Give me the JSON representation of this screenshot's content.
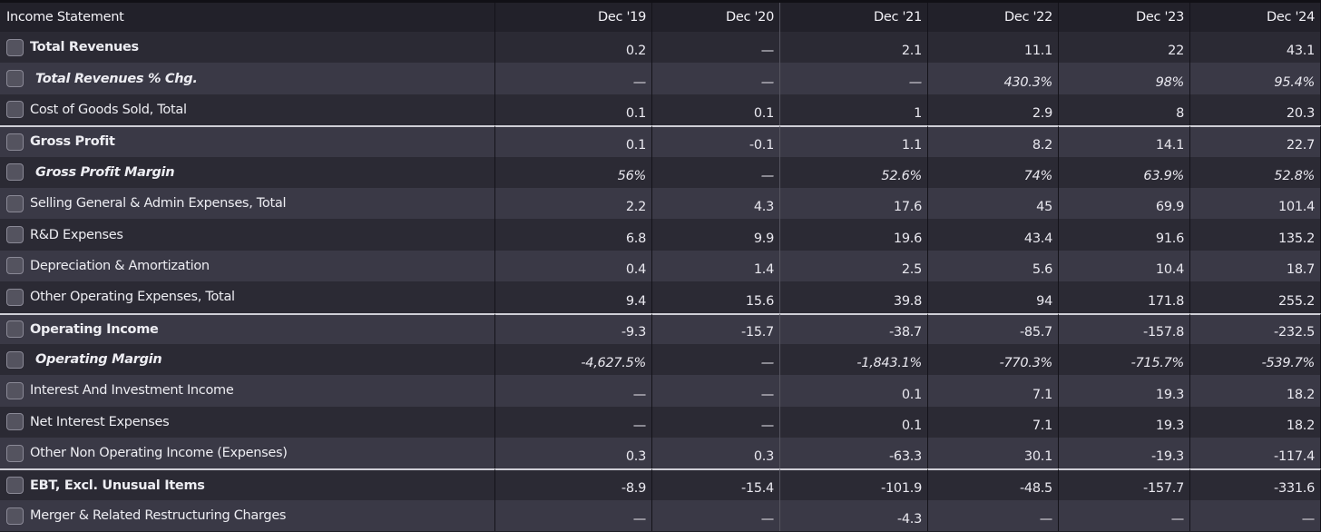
{
  "table": {
    "header_label": "Income Statement",
    "columns": [
      "Dec '19",
      "Dec '20",
      "Dec '21",
      "Dec '22",
      "Dec '23",
      "Dec '24"
    ],
    "rows": [
      {
        "label": "Total Revenues",
        "style": "bold",
        "values": [
          "0.2",
          "—",
          "2.1",
          "11.1",
          "22",
          "43.1"
        ]
      },
      {
        "label": "Total Revenues % Chg.",
        "style": "italic",
        "values": [
          "—",
          "—",
          "—",
          "430.3%",
          "98%",
          "95.4%"
        ]
      },
      {
        "label": "Cost of Goods Sold, Total",
        "style": "normal",
        "values": [
          "0.1",
          "0.1",
          "1",
          "2.9",
          "8",
          "20.3"
        ]
      },
      {
        "label": "Gross Profit",
        "style": "bold",
        "values": [
          "0.1",
          "-0.1",
          "1.1",
          "8.2",
          "14.1",
          "22.7"
        ]
      },
      {
        "label": "Gross Profit Margin",
        "style": "italic",
        "values": [
          "56%",
          "—",
          "52.6%",
          "74%",
          "63.9%",
          "52.8%"
        ]
      },
      {
        "label": "Selling General & Admin Expenses, Total",
        "style": "normal",
        "values": [
          "2.2",
          "4.3",
          "17.6",
          "45",
          "69.9",
          "101.4"
        ]
      },
      {
        "label": "R&D Expenses",
        "style": "normal",
        "values": [
          "6.8",
          "9.9",
          "19.6",
          "43.4",
          "91.6",
          "135.2"
        ]
      },
      {
        "label": "Depreciation & Amortization",
        "style": "normal",
        "values": [
          "0.4",
          "1.4",
          "2.5",
          "5.6",
          "10.4",
          "18.7"
        ]
      },
      {
        "label": "Other Operating Expenses, Total",
        "style": "normal",
        "values": [
          "9.4",
          "15.6",
          "39.8",
          "94",
          "171.8",
          "255.2"
        ]
      },
      {
        "label": "Operating Income",
        "style": "bold",
        "values": [
          "-9.3",
          "-15.7",
          "-38.7",
          "-85.7",
          "-157.8",
          "-232.5"
        ]
      },
      {
        "label": "Operating Margin",
        "style": "italic",
        "values": [
          "-4,627.5%",
          "—",
          "-1,843.1%",
          "-770.3%",
          "-715.7%",
          "-539.7%"
        ]
      },
      {
        "label": "Interest And Investment Income",
        "style": "normal",
        "values": [
          "—",
          "—",
          "0.1",
          "7.1",
          "19.3",
          "18.2"
        ]
      },
      {
        "label": "Net Interest Expenses",
        "style": "normal",
        "values": [
          "—",
          "—",
          "0.1",
          "7.1",
          "19.3",
          "18.2"
        ]
      },
      {
        "label": "Other Non Operating Income (Expenses)",
        "style": "normal",
        "values": [
          "0.3",
          "0.3",
          "-63.3",
          "30.1",
          "-19.3",
          "-117.4"
        ]
      },
      {
        "label": "EBT, Excl. Unusual Items",
        "style": "bold",
        "values": [
          "-8.9",
          "-15.4",
          "-101.9",
          "-48.5",
          "-157.7",
          "-331.6"
        ]
      },
      {
        "label": "Merger & Related Restructuring Charges",
        "style": "normal",
        "values": [
          "—",
          "—",
          "-4.3",
          "—",
          "—",
          "—"
        ]
      }
    ]
  },
  "colors": {
    "background": "#1e1d26",
    "row_dark": "#2b2a34",
    "row_light": "#3a3946",
    "text": "#ededf2",
    "divider": "#cfcfd6"
  }
}
